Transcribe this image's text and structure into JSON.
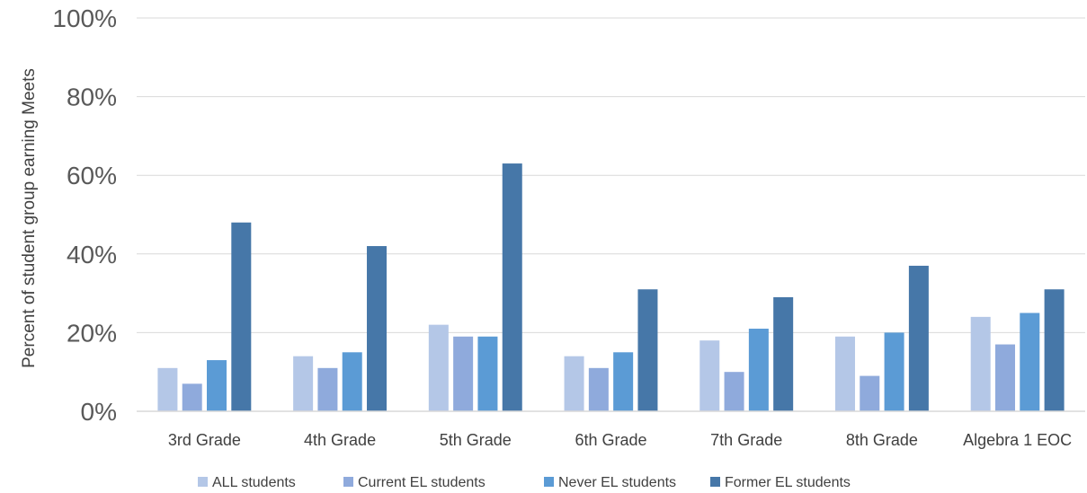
{
  "chart_data": {
    "type": "bar",
    "title": "",
    "xlabel": "",
    "ylabel": "Percent of student group earning Meets",
    "ylim": [
      0,
      100
    ],
    "yticks": [
      "0%",
      "20%",
      "40%",
      "60%",
      "80%",
      "100%"
    ],
    "ytick_values": [
      0,
      20,
      40,
      60,
      80,
      100
    ],
    "grid": true,
    "legend_position": "bottom",
    "categories": [
      "3rd Grade",
      "4th Grade",
      "5th Grade",
      "6th Grade",
      "7th Grade",
      "8th Grade",
      "Algebra 1 EOC"
    ],
    "series": [
      {
        "name": "ALL students",
        "color": "#b4c7e7",
        "values": [
          11,
          14,
          22,
          14,
          18,
          19,
          24
        ]
      },
      {
        "name": "Current EL students",
        "color": "#8faadc",
        "values": [
          7,
          11,
          19,
          11,
          10,
          9,
          17
        ]
      },
      {
        "name": "Never EL students",
        "color": "#5b9bd5",
        "values": [
          13,
          15,
          19,
          15,
          21,
          20,
          25
        ]
      },
      {
        "name": "Former EL students",
        "color": "#4677a8",
        "values": [
          48,
          42,
          63,
          31,
          29,
          37,
          31
        ]
      }
    ]
  }
}
